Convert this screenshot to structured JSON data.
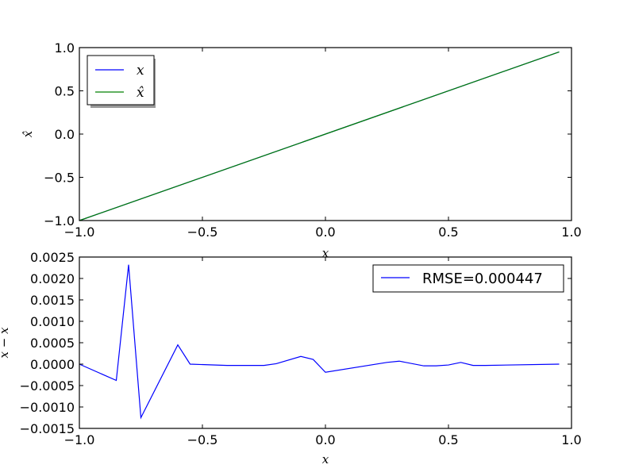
{
  "chart_data": [
    {
      "type": "line",
      "xlim": [
        -1.0,
        1.0
      ],
      "ylim": [
        -1.0,
        1.0
      ],
      "xticks": [
        -1.0,
        -0.5,
        0.0,
        0.5,
        1.0
      ],
      "xtick_labels": [
        "−1.0",
        "−0.5",
        "0.0",
        "0.5",
        "1.0"
      ],
      "yticks": [
        -1.0,
        -0.5,
        0.0,
        0.5,
        1.0
      ],
      "ytick_labels": [
        "−1.0",
        "−0.5",
        "0.0",
        "0.5",
        "1.0"
      ],
      "xlabel": "x",
      "ylabel": "x̂",
      "grid": false,
      "legend_position": "top-left",
      "series": [
        {
          "name": "x",
          "color": "#0000ff",
          "x": [
            -1.0,
            0.95
          ],
          "y": [
            -1.0,
            0.95
          ]
        },
        {
          "name": "x̂",
          "color": "#008000",
          "x": [
            -1.0,
            0.95
          ],
          "y": [
            -1.0,
            0.95
          ]
        }
      ]
    },
    {
      "type": "line",
      "xlim": [
        -1.0,
        1.0
      ],
      "ylim": [
        -0.0015,
        0.0025
      ],
      "xticks": [
        -1.0,
        -0.5,
        0.0,
        0.5,
        1.0
      ],
      "xtick_labels": [
        "−1.0",
        "−0.5",
        "0.0",
        "0.5",
        "1.0"
      ],
      "yticks": [
        -0.0015,
        -0.001,
        -0.0005,
        0.0,
        0.0005,
        0.001,
        0.0015,
        0.002,
        0.0025
      ],
      "ytick_labels": [
        "−0.0015",
        "−0.0010",
        "−0.0005",
        "0.0000",
        "0.0005",
        "0.0010",
        "0.0015",
        "0.0020",
        "0.0025"
      ],
      "xlabel": "x",
      "ylabel": "x − x",
      "grid": false,
      "legend_position": "top-right",
      "series": [
        {
          "name": "RMSE=0.000447",
          "color": "#0000ff",
          "x": [
            -1.0,
            -0.85,
            -0.8,
            -0.75,
            -0.6,
            -0.55,
            -0.4,
            -0.25,
            -0.2,
            -0.1,
            -0.05,
            0.0,
            0.25,
            0.3,
            0.4,
            0.45,
            0.5,
            0.55,
            0.6,
            0.65,
            0.95
          ],
          "y": [
            0.0,
            -0.00038,
            0.00232,
            -0.00125,
            0.00045,
            0.0,
            -3e-05,
            -3e-05,
            1e-05,
            0.00018,
            0.00011,
            -0.00019,
            4e-05,
            7e-05,
            -4e-05,
            -4e-05,
            -2e-05,
            4e-05,
            -3e-05,
            -3e-05,
            0.0
          ]
        }
      ]
    }
  ]
}
